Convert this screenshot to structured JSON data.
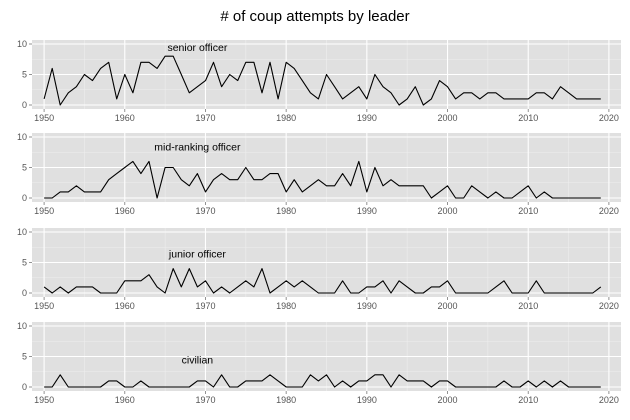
{
  "chart_data": {
    "type": "line",
    "title": "# of coup attempts by leader",
    "xlabel": "",
    "ylabel": "",
    "xlim": [
      1950,
      2019
    ],
    "ylim": [
      0,
      10
    ],
    "x_ticks": [
      1950,
      1960,
      1970,
      1980,
      1990,
      2000,
      2010,
      2020
    ],
    "x_tick_labels": [
      "1950",
      "1960",
      "1970",
      "1980",
      "1990",
      "2000",
      "2010",
      "2020"
    ],
    "y_ticks": [
      0,
      5,
      10
    ],
    "y_tick_labels": [
      "0",
      "5",
      "10"
    ],
    "grid": true,
    "panel_background": "#e0e0e0",
    "grid_color": "#ffffff",
    "line_color": "#000000",
    "x": [
      1950,
      1951,
      1952,
      1953,
      1954,
      1955,
      1956,
      1957,
      1958,
      1959,
      1960,
      1961,
      1962,
      1963,
      1964,
      1965,
      1966,
      1967,
      1968,
      1969,
      1970,
      1971,
      1972,
      1973,
      1974,
      1975,
      1976,
      1977,
      1978,
      1979,
      1980,
      1981,
      1982,
      1983,
      1984,
      1985,
      1986,
      1987,
      1988,
      1989,
      1990,
      1991,
      1992,
      1993,
      1994,
      1995,
      1996,
      1997,
      1998,
      1999,
      2000,
      2001,
      2002,
      2003,
      2004,
      2005,
      2006,
      2007,
      2008,
      2009,
      2010,
      2011,
      2012,
      2013,
      2014,
      2015,
      2016,
      2017,
      2018,
      2019
    ],
    "panels": [
      {
        "name": "senior officer",
        "values": [
          1,
          6,
          0,
          2,
          3,
          5,
          4,
          6,
          7,
          1,
          5,
          2,
          7,
          7,
          6,
          8,
          8,
          5,
          2,
          3,
          4,
          7,
          3,
          5,
          4,
          7,
          7,
          2,
          7,
          1,
          7,
          6,
          4,
          2,
          1,
          5,
          3,
          1,
          2,
          3,
          1,
          5,
          3,
          2,
          0,
          1,
          3,
          0,
          1,
          4,
          3,
          1,
          2,
          2,
          1,
          2,
          2,
          1,
          1,
          1,
          1,
          2,
          2,
          1,
          3,
          2,
          1,
          1,
          1,
          1
        ]
      },
      {
        "name": "mid-ranking officer",
        "values": [
          0,
          0,
          1,
          1,
          2,
          1,
          1,
          1,
          3,
          4,
          5,
          6,
          4,
          6,
          0,
          5,
          5,
          3,
          2,
          4,
          1,
          3,
          4,
          3,
          3,
          5,
          3,
          3,
          4,
          4,
          1,
          3,
          1,
          2,
          3,
          2,
          2,
          4,
          2,
          6,
          1,
          5,
          2,
          3,
          2,
          2,
          2,
          2,
          0,
          1,
          2,
          0,
          0,
          2,
          1,
          0,
          1,
          0,
          0,
          1,
          2,
          0,
          1,
          0,
          0,
          0,
          0,
          0,
          0,
          0
        ]
      },
      {
        "name": "junior officer",
        "values": [
          1,
          0,
          1,
          0,
          1,
          1,
          1,
          0,
          0,
          0,
          2,
          2,
          2,
          3,
          1,
          0,
          4,
          1,
          4,
          1,
          2,
          0,
          1,
          0,
          1,
          2,
          1,
          4,
          0,
          1,
          2,
          1,
          2,
          1,
          0,
          0,
          0,
          2,
          0,
          0,
          1,
          1,
          2,
          0,
          2,
          1,
          0,
          0,
          1,
          1,
          2,
          0,
          0,
          0,
          0,
          0,
          1,
          2,
          0,
          0,
          0,
          2,
          0,
          0,
          0,
          0,
          0,
          0,
          0,
          1
        ]
      },
      {
        "name": "civilian",
        "values": [
          0,
          0,
          2,
          0,
          0,
          0,
          0,
          0,
          1,
          1,
          0,
          0,
          1,
          0,
          0,
          0,
          0,
          0,
          0,
          1,
          1,
          0,
          2,
          0,
          0,
          1,
          1,
          1,
          2,
          1,
          0,
          0,
          0,
          2,
          1,
          2,
          0,
          1,
          0,
          1,
          1,
          2,
          2,
          0,
          2,
          1,
          1,
          1,
          0,
          1,
          1,
          0,
          0,
          0,
          0,
          0,
          0,
          1,
          0,
          0,
          1,
          0,
          1,
          0,
          1,
          0,
          0,
          0,
          0,
          0
        ]
      }
    ]
  }
}
